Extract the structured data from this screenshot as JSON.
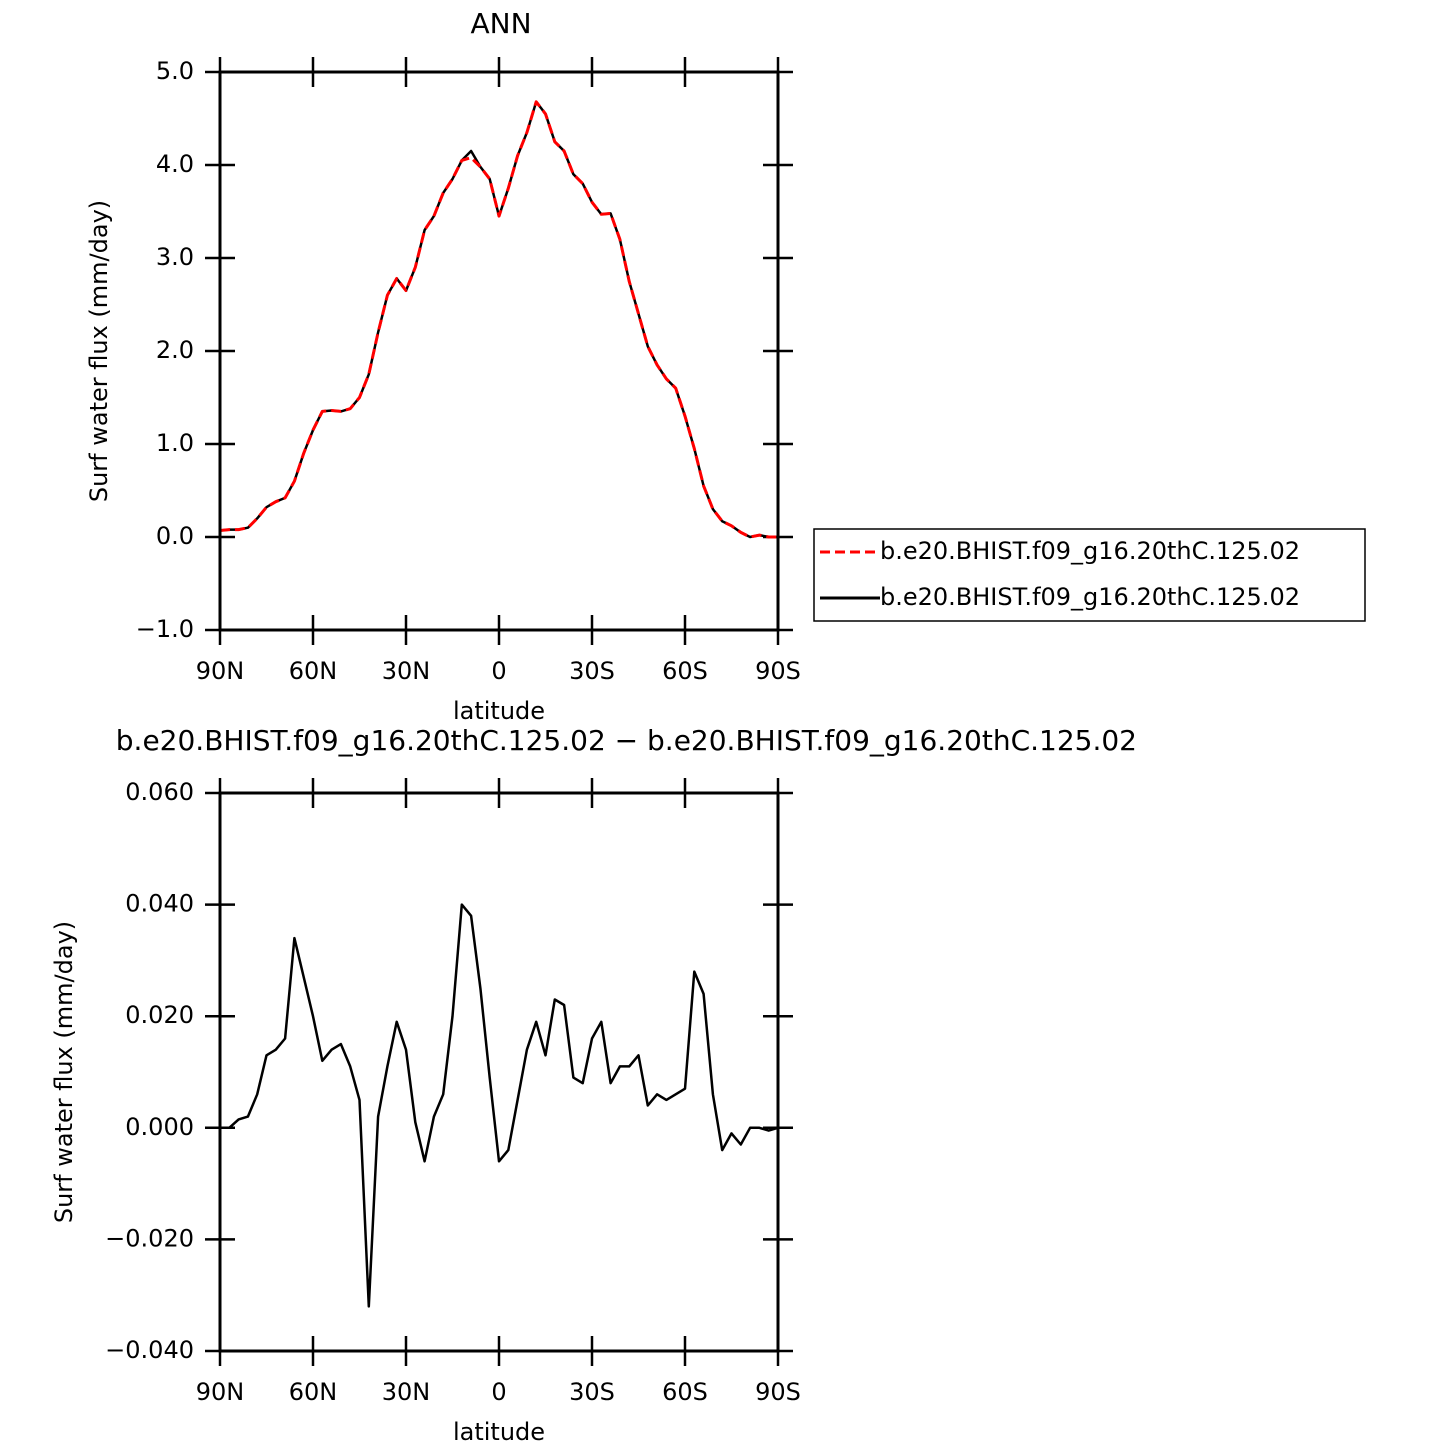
{
  "chart_data": [
    {
      "type": "line",
      "title": "ANN",
      "xlabel": "latitude",
      "ylabel": "Surf water flux (mm/day)",
      "x": [
        90,
        87,
        84,
        81,
        78,
        75,
        72,
        69,
        66,
        63,
        60,
        57,
        54,
        51,
        48,
        45,
        42,
        39,
        36,
        33,
        30,
        27,
        24,
        21,
        18,
        15,
        12,
        9,
        6,
        3,
        0,
        -3,
        -6,
        -9,
        -12,
        -15,
        -18,
        -21,
        -24,
        -27,
        -30,
        -33,
        -36,
        -39,
        -42,
        -45,
        -48,
        -51,
        -54,
        -57,
        -60,
        -63,
        -66,
        -69,
        -72,
        -75,
        -78,
        -81,
        -84,
        -87,
        -90
      ],
      "series": [
        {
          "name": "b.e20.BHIST.f09_g16.20thC.125.02",
          "color": "#ff0000",
          "dash": true,
          "values": [
            0.07,
            0.08,
            0.08,
            0.1,
            0.2,
            0.32,
            0.38,
            0.42,
            0.6,
            0.9,
            1.15,
            1.35,
            1.36,
            1.35,
            1.38,
            1.5,
            1.75,
            2.2,
            2.6,
            2.78,
            2.65,
            2.9,
            3.3,
            3.45,
            3.7,
            3.85,
            4.05,
            4.08,
            3.98,
            3.85,
            3.45,
            3.75,
            4.1,
            4.35,
            4.68,
            4.55,
            4.25,
            4.15,
            3.9,
            3.8,
            3.6,
            3.47,
            3.48,
            3.2,
            2.75,
            2.4,
            2.05,
            1.85,
            1.7,
            1.6,
            1.3,
            0.95,
            0.55,
            0.3,
            0.17,
            0.12,
            0.05,
            0.0,
            0.02,
            0.0,
            0.0
          ]
        },
        {
          "name": "b.e20.BHIST.f09_g16.20thC.125.02",
          "color": "#000000",
          "dash": false,
          "values": [
            0.07,
            0.08,
            0.08,
            0.1,
            0.2,
            0.32,
            0.38,
            0.42,
            0.6,
            0.9,
            1.15,
            1.35,
            1.36,
            1.35,
            1.38,
            1.5,
            1.75,
            2.2,
            2.6,
            2.78,
            2.65,
            2.9,
            3.3,
            3.45,
            3.7,
            3.85,
            4.05,
            4.15,
            3.98,
            3.85,
            3.45,
            3.75,
            4.1,
            4.35,
            4.68,
            4.55,
            4.25,
            4.15,
            3.9,
            3.8,
            3.6,
            3.47,
            3.48,
            3.2,
            2.75,
            2.4,
            2.05,
            1.85,
            1.7,
            1.6,
            1.3,
            0.95,
            0.55,
            0.3,
            0.17,
            0.12,
            0.05,
            0.0,
            0.02,
            0.0,
            0.0
          ]
        }
      ],
      "xlim": [
        90,
        -90
      ],
      "xticks": [
        {
          "value": 90,
          "label": "90N"
        },
        {
          "value": 60,
          "label": "60N"
        },
        {
          "value": 30,
          "label": "30N"
        },
        0,
        {
          "value": -30,
          "label": "30S"
        },
        {
          "value": -60,
          "label": "60S"
        },
        {
          "value": -90,
          "label": "90S"
        }
      ],
      "ylim": [
        -1,
        5
      ],
      "yticks": [
        {
          "value": -1,
          "label": "−1.0"
        },
        {
          "value": 0,
          "label": "0.0"
        },
        {
          "value": 1,
          "label": "1.0"
        },
        {
          "value": 2,
          "label": "2.0"
        },
        {
          "value": 3,
          "label": "3.0"
        },
        {
          "value": 4,
          "label": "4.0"
        },
        {
          "value": 5,
          "label": "5.0"
        }
      ],
      "legend": "right"
    },
    {
      "type": "line",
      "title": "b.e20.BHIST.f09_g16.20thC.125.02 − b.e20.BHIST.f09_g16.20thC.125.02",
      "xlabel": "latitude",
      "ylabel": "Surf water flux (mm/day)",
      "x": [
        90,
        87,
        84,
        81,
        78,
        75,
        72,
        69,
        66,
        63,
        60,
        57,
        54,
        51,
        48,
        45,
        42,
        39,
        36,
        33,
        30,
        27,
        24,
        21,
        18,
        15,
        12,
        9,
        6,
        3,
        0,
        -3,
        -6,
        -9,
        -12,
        -15,
        -18,
        -21,
        -24,
        -27,
        -30,
        -33,
        -36,
        -39,
        -42,
        -45,
        -48,
        -51,
        -54,
        -57,
        -60,
        -63,
        -66,
        -69,
        -72,
        -75,
        -78,
        -81,
        -84,
        -87,
        -90
      ],
      "series": [
        {
          "color": "#000000",
          "dash": false,
          "values": [
            0.0,
            0.0,
            0.0015,
            0.002,
            0.006,
            0.013,
            0.014,
            0.016,
            0.034,
            0.027,
            0.02,
            0.012,
            0.014,
            0.015,
            0.011,
            0.005,
            -0.032,
            0.002,
            0.011,
            0.019,
            0.014,
            0.001,
            -0.006,
            0.002,
            0.006,
            0.02,
            0.04,
            0.038,
            0.025,
            0.009,
            -0.006,
            -0.004,
            0.005,
            0.014,
            0.019,
            0.013,
            0.023,
            0.022,
            0.009,
            0.008,
            0.016,
            0.019,
            0.008,
            0.011,
            0.011,
            0.013,
            0.004,
            0.006,
            0.005,
            0.006,
            0.007,
            0.028,
            0.024,
            0.006,
            -0.004,
            -0.001,
            -0.003,
            0.0,
            0.0,
            -0.0005,
            0.0
          ]
        }
      ],
      "xlim": [
        90,
        -90
      ],
      "xticks": [
        {
          "value": 90,
          "label": "90N"
        },
        {
          "value": 60,
          "label": "60N"
        },
        {
          "value": 30,
          "label": "30N"
        },
        0,
        {
          "value": -30,
          "label": "30S"
        },
        {
          "value": -60,
          "label": "60S"
        },
        {
          "value": -90,
          "label": "90S"
        }
      ],
      "ylim": [
        -0.04,
        0.06
      ],
      "yticks": [
        {
          "value": -0.04,
          "label": "−0.040"
        },
        {
          "value": -0.02,
          "label": "−0.020"
        },
        {
          "value": 0,
          "label": "0.000"
        },
        {
          "value": 0.02,
          "label": "0.020"
        },
        {
          "value": 0.04,
          "label": "0.040"
        },
        {
          "value": 0.06,
          "label": "0.060"
        }
      ]
    }
  ]
}
